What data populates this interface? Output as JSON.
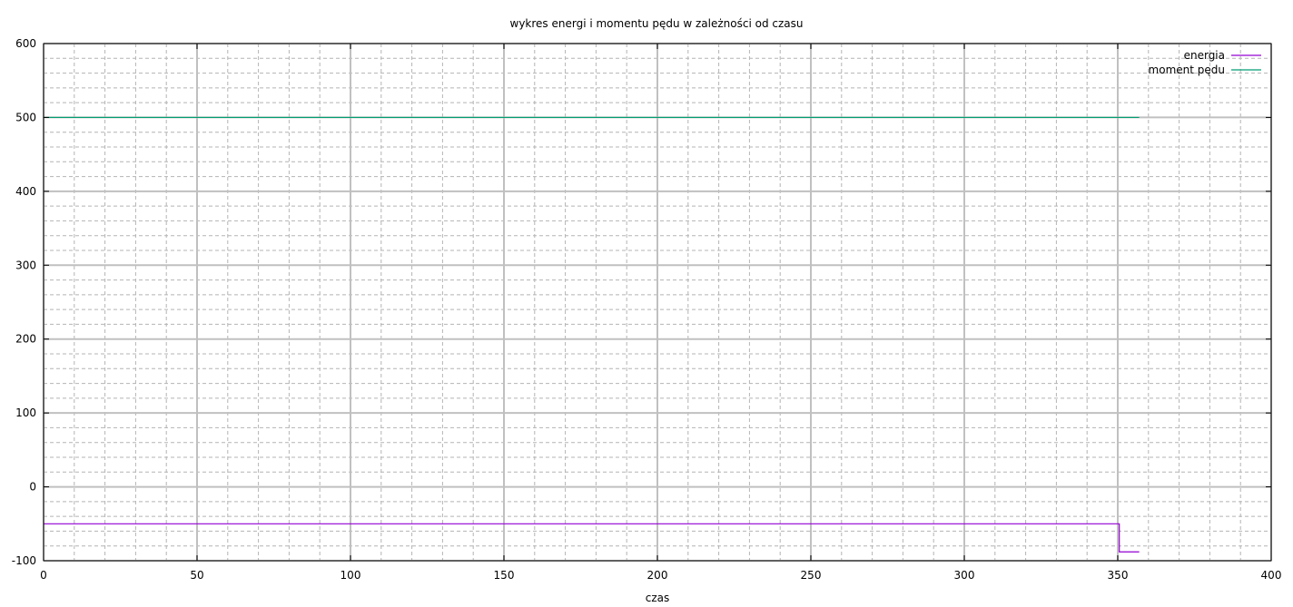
{
  "chart_data": {
    "type": "line",
    "title": "wykres energi i momentu pędu w zależności od czasu",
    "xlabel": "czas",
    "ylabel": "",
    "xlim": [
      0,
      400
    ],
    "ylim": [
      -100,
      600
    ],
    "x_ticks": [
      0,
      50,
      100,
      150,
      200,
      250,
      300,
      350,
      400
    ],
    "y_ticks": [
      -100,
      0,
      100,
      200,
      300,
      400,
      500,
      600
    ],
    "x_minor_step": 10,
    "y_minor_step": 20,
    "grid": true,
    "legend_position": "top-right",
    "series": [
      {
        "name": "energia",
        "color": "#9400d3",
        "points": [
          [
            0,
            -50
          ],
          [
            350.5,
            -50
          ],
          [
            350.5,
            -88
          ],
          [
            357,
            -88
          ]
        ]
      },
      {
        "name": "moment pędu",
        "color": "#009e73",
        "points": [
          [
            0,
            500
          ],
          [
            357,
            500
          ]
        ]
      }
    ]
  }
}
